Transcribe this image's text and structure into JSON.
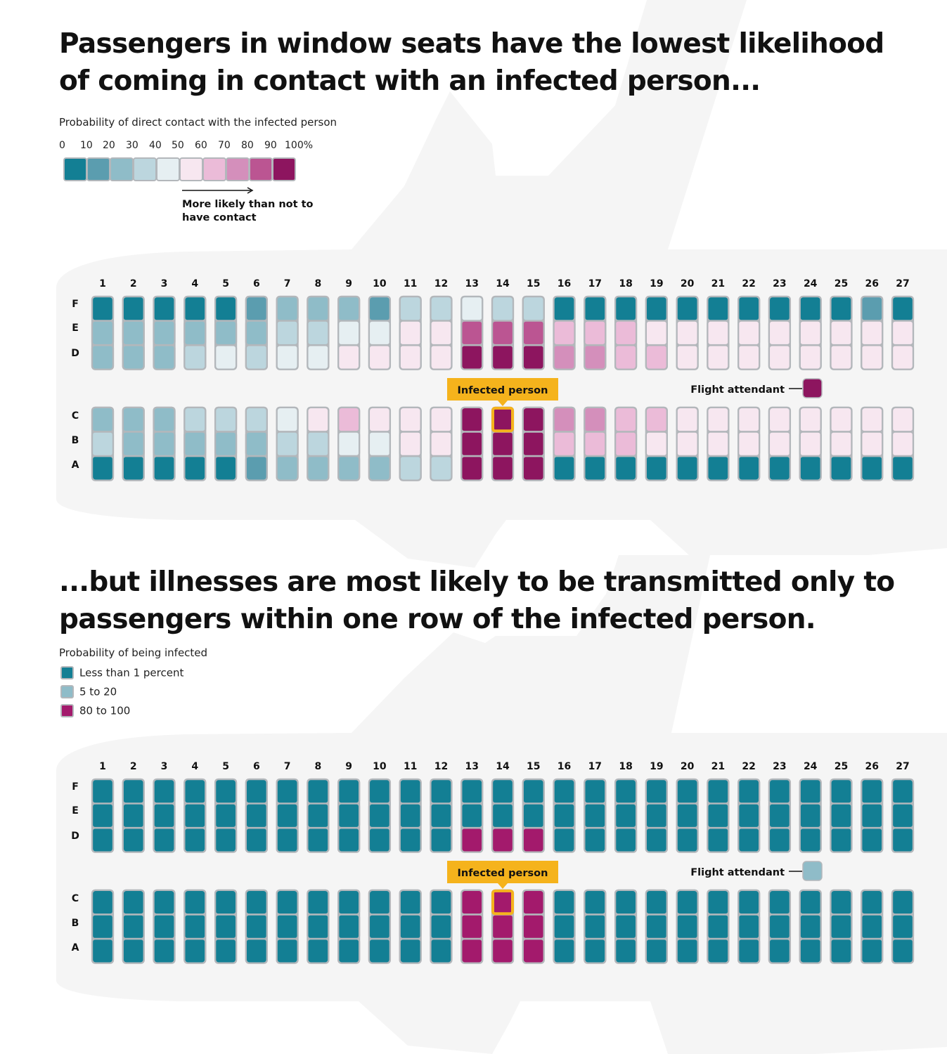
{
  "chart_data": [
    {
      "type": "heatmap",
      "title": "Passengers in window seats have the lowest likelihood of coming in contact with an infected person...",
      "legend_title": "Probability of direct contact with the infected person",
      "scale_ticks": [
        "0",
        "10",
        "20",
        "30",
        "40",
        "50",
        "60",
        "70",
        "80",
        "90",
        "100%"
      ],
      "scale_colors": [
        "#137f94",
        "#5b9daf",
        "#8fbcc8",
        "#bcd6de",
        "#e6eff2",
        "#f7e7f0",
        "#ebbbd8",
        "#d48fbb",
        "#bb5592",
        "#8d155f"
      ],
      "scale_note": "More likely than not to have contact",
      "rows": [
        "1",
        "2",
        "3",
        "4",
        "5",
        "6",
        "7",
        "8",
        "9",
        "10",
        "11",
        "12",
        "13",
        "14",
        "15",
        "16",
        "17",
        "18",
        "19",
        "20",
        "21",
        "22",
        "23",
        "24",
        "25",
        "26",
        "27"
      ],
      "seats": [
        "F",
        "E",
        "D",
        "C",
        "B",
        "A"
      ],
      "values": {
        "F": [
          0,
          0,
          0,
          0,
          0,
          1,
          2,
          2,
          2,
          1,
          3,
          3,
          4,
          3,
          3,
          0,
          0,
          0,
          0,
          0,
          0,
          0,
          0,
          0,
          0,
          1,
          0
        ],
        "E": [
          2,
          2,
          2,
          2,
          2,
          2,
          3,
          3,
          4,
          4,
          5,
          5,
          8,
          8,
          8,
          6,
          6,
          6,
          5,
          5,
          5,
          5,
          5,
          5,
          5,
          5,
          5
        ],
        "D": [
          2,
          2,
          2,
          3,
          4,
          3,
          4,
          4,
          5,
          5,
          5,
          5,
          9,
          9,
          9,
          7,
          7,
          6,
          6,
          5,
          5,
          5,
          5,
          5,
          5,
          5,
          5
        ],
        "C": [
          2,
          2,
          2,
          3,
          3,
          3,
          4,
          5,
          6,
          5,
          5,
          5,
          9,
          9,
          9,
          7,
          7,
          6,
          6,
          5,
          5,
          5,
          5,
          5,
          5,
          5,
          5
        ],
        "B": [
          3,
          2,
          2,
          2,
          2,
          2,
          3,
          3,
          4,
          4,
          5,
          5,
          9,
          9,
          9,
          6,
          6,
          6,
          5,
          5,
          5,
          5,
          5,
          5,
          5,
          5,
          5
        ],
        "A": [
          0,
          0,
          0,
          0,
          0,
          1,
          2,
          2,
          2,
          2,
          3,
          3,
          9,
          9,
          9,
          0,
          0,
          0,
          0,
          0,
          0,
          0,
          0,
          0,
          0,
          0,
          0
        ]
      },
      "infected_seat": {
        "row": "14",
        "seat": "C"
      },
      "infected_label": "Infected person",
      "attendant_label": "Flight attendant",
      "attendant_level": 9
    },
    {
      "type": "heatmap",
      "title": "...but illnesses are most likely to be transmitted only to passengers within one row of the infected person.",
      "legend_title": "Probability of being infected",
      "categories": [
        {
          "label": "Less than 1 percent",
          "color": "#137f94"
        },
        {
          "label": "5 to 20",
          "color": "#8fbcc8"
        },
        {
          "label": "80 to 100",
          "color": "#a31a6c"
        }
      ],
      "rows": [
        "1",
        "2",
        "3",
        "4",
        "5",
        "6",
        "7",
        "8",
        "9",
        "10",
        "11",
        "12",
        "13",
        "14",
        "15",
        "16",
        "17",
        "18",
        "19",
        "20",
        "21",
        "22",
        "23",
        "24",
        "25",
        "26",
        "27"
      ],
      "seats": [
        "F",
        "E",
        "D",
        "C",
        "B",
        "A"
      ],
      "infected_zone": {
        "rows": [
          "13",
          "14",
          "15"
        ],
        "seats": [
          "D",
          "C",
          "B",
          "A"
        ],
        "category": "80 to 100"
      },
      "other_seats_category": "Less than 1 percent",
      "infected_seat": {
        "row": "14",
        "seat": "C"
      },
      "infected_label": "Infected person",
      "attendant_label": "Flight attendant",
      "attendant_category": "5 to 20"
    }
  ],
  "colors": {
    "plane_fill": "#f5f5f5",
    "seat_border": "#b3b7bb",
    "infected_highlight": "#f5b31c",
    "infected_fill_2": "#a31a6c"
  }
}
